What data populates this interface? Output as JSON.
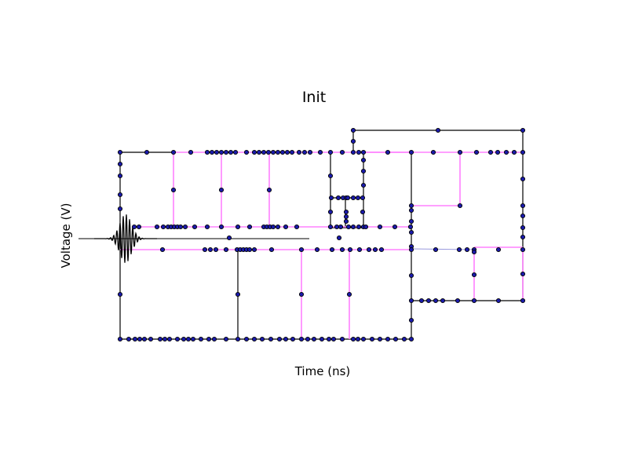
{
  "title": "Init",
  "xlabel": "Time (ns)",
  "ylabel": "Voltage (V)",
  "colors": {
    "wire": "#000000",
    "resonator": "#ff80ff",
    "coupler": "#9999dd",
    "node_fill": "#1a1aaa",
    "node_stroke": "#000000",
    "pulse": "#000000"
  }
}
